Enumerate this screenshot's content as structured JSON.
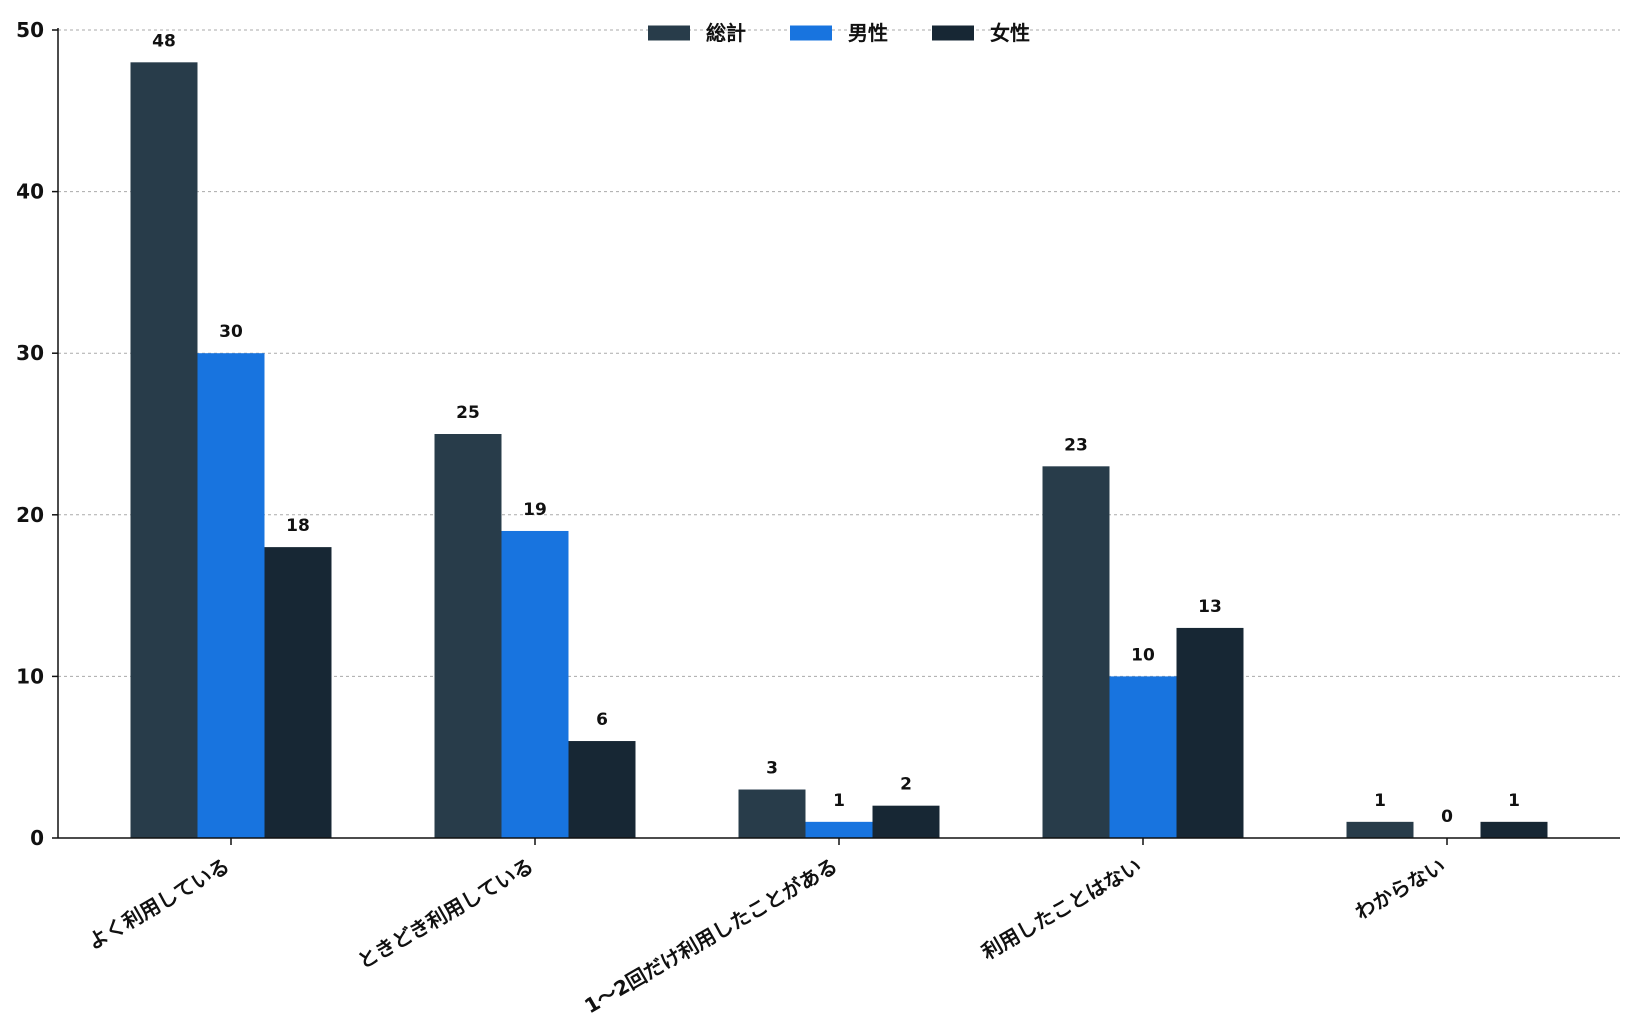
{
  "chart_data": {
    "type": "bar",
    "categories": [
      "よく利用している",
      "ときどき利用している",
      "1～2回だけ利用したことがある",
      "利用したことはない",
      "わからない"
    ],
    "series": [
      {
        "name": "総計",
        "values": [
          48,
          25,
          3,
          23,
          1
        ],
        "color": "#283c4a"
      },
      {
        "name": "男性",
        "values": [
          30,
          19,
          1,
          10,
          0
        ],
        "color": "#1874df"
      },
      {
        "name": "女性",
        "values": [
          18,
          6,
          2,
          13,
          1
        ],
        "color": "#172734"
      }
    ],
    "ylim": [
      0,
      50
    ],
    "yticks": [
      0,
      10,
      20,
      30,
      40,
      50
    ],
    "grid": true,
    "legend_position": "top-center",
    "title": "",
    "xlabel": "",
    "ylabel": ""
  }
}
